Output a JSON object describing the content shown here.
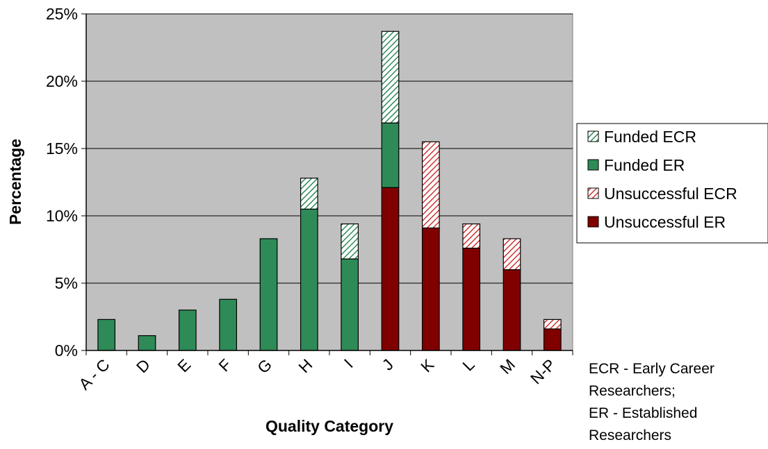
{
  "chart_data": {
    "type": "bar",
    "stacked": true,
    "categories": [
      "A - C",
      "D",
      "E",
      "F",
      "G",
      "H",
      "I",
      "J",
      "K",
      "L",
      "M",
      "N-P"
    ],
    "series": [
      {
        "name": "Unsuccessful ER",
        "color": "#800000",
        "pattern": "solid",
        "values": [
          0,
          0,
          0,
          0,
          0,
          0,
          0,
          12.1,
          9.1,
          7.6,
          6.0,
          1.6
        ]
      },
      {
        "name": "Unsuccessful ECR",
        "color": "#cc3333",
        "pattern": "hatched",
        "values": [
          0,
          0,
          0,
          0,
          0,
          0,
          0,
          0,
          6.4,
          1.8,
          2.3,
          0.7
        ]
      },
      {
        "name": "Funded ER",
        "color": "#2e8b57",
        "pattern": "solid",
        "values": [
          2.3,
          1.1,
          3.0,
          3.8,
          8.3,
          10.5,
          6.8,
          4.8,
          0,
          0,
          0,
          0
        ]
      },
      {
        "name": "Funded ECR",
        "color": "#2e8b57",
        "pattern": "hatched",
        "values": [
          0,
          0,
          0,
          0,
          0,
          2.3,
          2.6,
          6.8,
          0,
          0,
          0,
          0
        ]
      }
    ],
    "legend_order": [
      "Funded ECR",
      "Funded ER",
      "Unsuccessful ECR",
      "Unsuccessful ER"
    ],
    "legend_position": "right",
    "ylim": [
      0,
      25
    ],
    "yticks": [
      "0%",
      "5%",
      "10%",
      "15%",
      "20%",
      "25%"
    ],
    "ytick_values": [
      0,
      5,
      10,
      15,
      20,
      25
    ],
    "xlabel": "Quality Category",
    "ylabel": "Percentage",
    "grid": true,
    "plot_background": "#c0c0c0",
    "note_lines": [
      "ECR - Early Career",
      "Researchers;",
      "ER - Established",
      "Researchers"
    ]
  }
}
